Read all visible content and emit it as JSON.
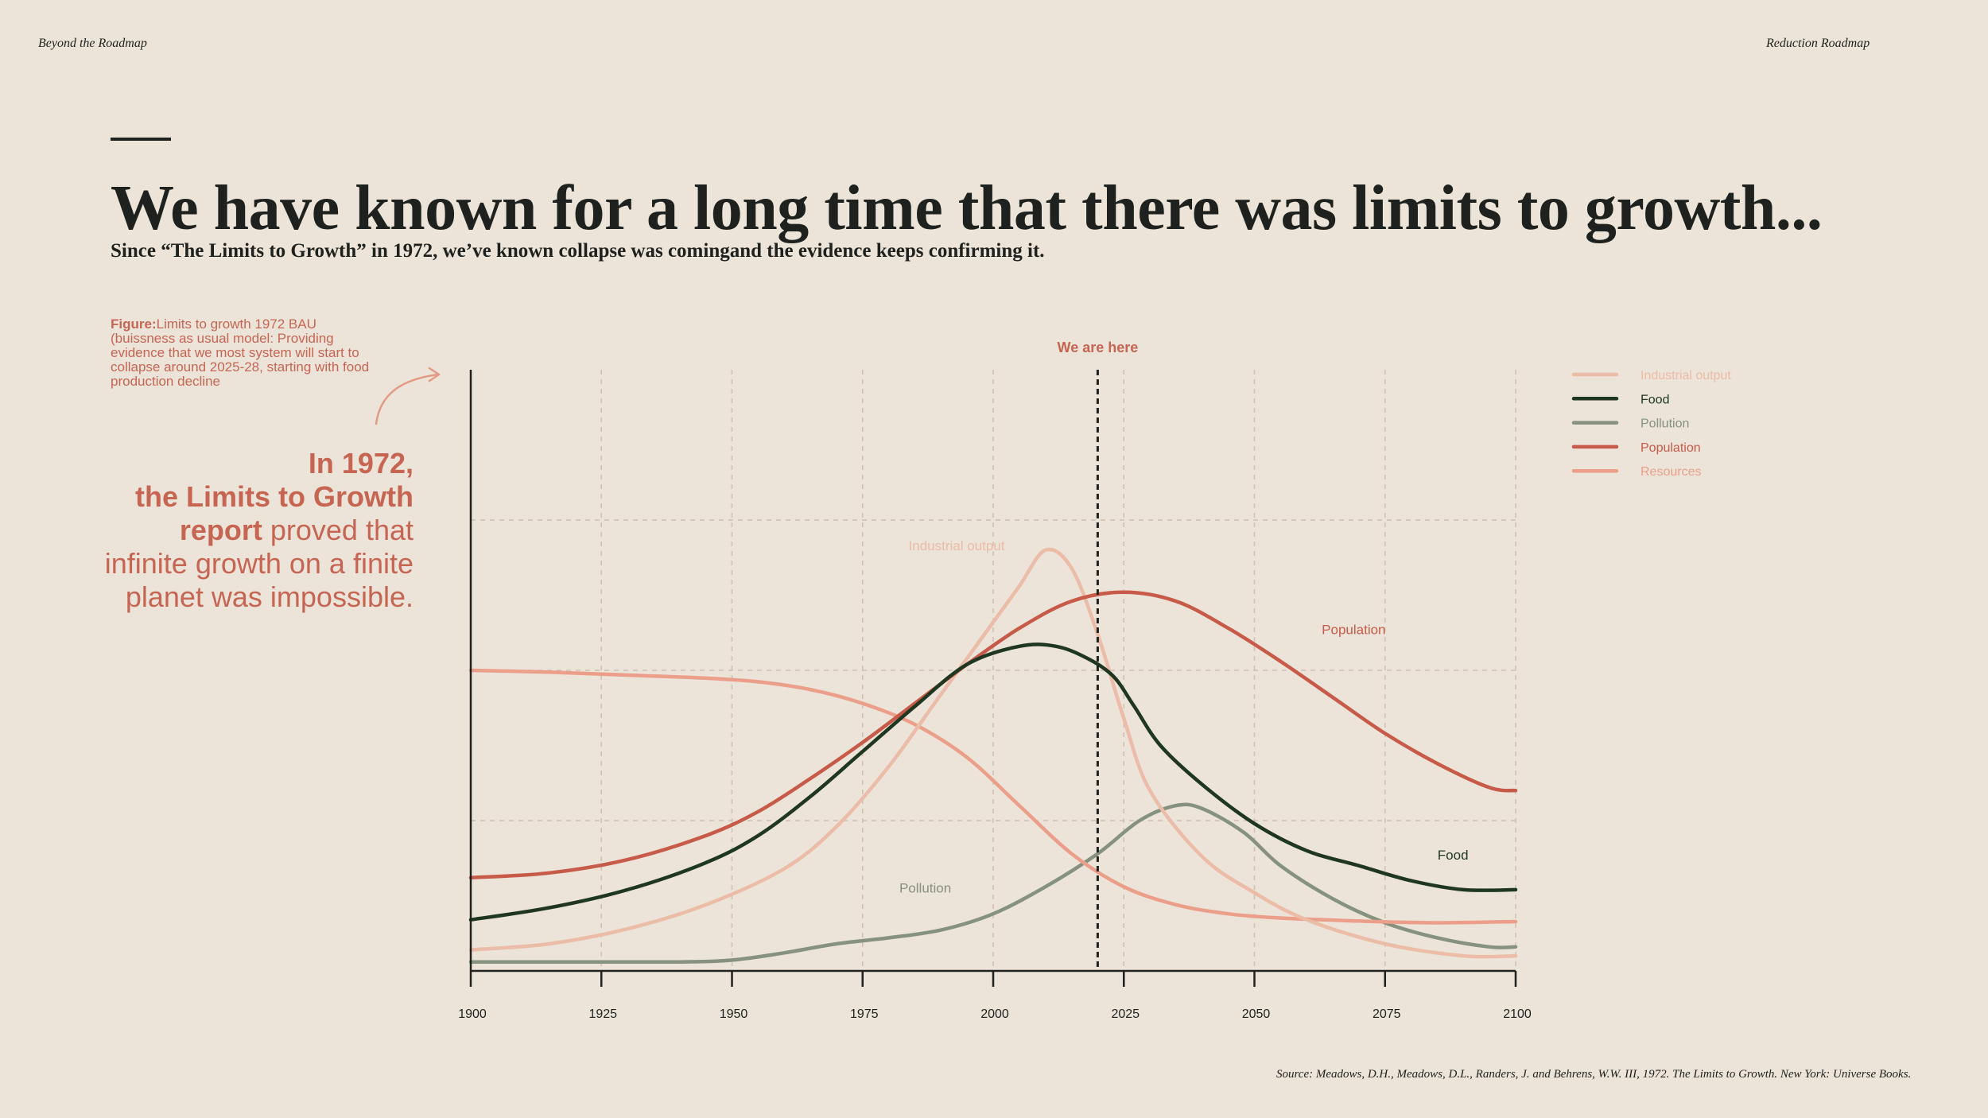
{
  "header": {
    "left": "Beyond the Roadmap",
    "right": "Reduction Roadmap"
  },
  "title": "We have known for a long time that there was limits to growth...",
  "subtitle": "Since “The Limits to Growth” in 1972, we’ve known collapse was comingand the evidence keeps confirming it.",
  "figure_note": {
    "label": "Figure:",
    "text": "Limits to growth 1972 BAU (buissness as usual model: Providing evidence that we most system will start to collapse around 2025-28, starting with food production decline"
  },
  "callout": {
    "line1": "In 1972,",
    "line2": "the Limits to Growth",
    "line3_strong": "report",
    "line3_rest": " proved that",
    "line4": "infinite growth on a finite",
    "line5": "planet was impossible."
  },
  "source": "Source: Meadows, D.H., Meadows, D.L., Randers, J. and Behrens, W.W. III, 1972. The Limits to Growth. New York: Universe Books.",
  "icons": {
    "arrow": "curved-arrow-icon"
  },
  "colors": {
    "background": "#ece3d9",
    "ink": "#1e211d",
    "accent": "#c76553",
    "industrial": "#ebbca7",
    "food": "#1f3620",
    "pollution": "#879180",
    "population": "#c75a48",
    "resources": "#eb9f8a",
    "grid": "#cfc0b4"
  },
  "chart_data": {
    "type": "line",
    "x_ticks": [
      1900,
      1925,
      1950,
      1975,
      2000,
      2025,
      2050,
      2075,
      2100
    ],
    "xlim": [
      1900,
      2100
    ],
    "ylim": [
      0,
      100
    ],
    "y_grid": [
      25,
      50,
      75
    ],
    "grid": true,
    "legend_position": "top-right",
    "marker": {
      "x": 2020,
      "label": "We are here"
    },
    "series": [
      {
        "name": "Industrial output",
        "color": "#ebbca7",
        "label_at": {
          "x": 1993,
          "y": 70,
          "text": "Industrial output"
        },
        "points": [
          [
            1900,
            3.5
          ],
          [
            1915,
            4.5
          ],
          [
            1930,
            7
          ],
          [
            1945,
            11
          ],
          [
            1960,
            17
          ],
          [
            1970,
            24
          ],
          [
            1980,
            34
          ],
          [
            1990,
            46
          ],
          [
            2000,
            58
          ],
          [
            2005,
            64
          ],
          [
            2010,
            70
          ],
          [
            2015,
            67
          ],
          [
            2020,
            56
          ],
          [
            2025,
            42
          ],
          [
            2030,
            30
          ],
          [
            2040,
            19
          ],
          [
            2050,
            13
          ],
          [
            2060,
            8.5
          ],
          [
            2075,
            4.5
          ],
          [
            2090,
            2.5
          ],
          [
            2100,
            2.5
          ]
        ]
      },
      {
        "name": "Food",
        "color": "#1f3620",
        "label_at": {
          "x": 2088,
          "y": 18.5,
          "text": "Food"
        },
        "points": [
          [
            1900,
            8.5
          ],
          [
            1915,
            10.5
          ],
          [
            1930,
            13.5
          ],
          [
            1945,
            18
          ],
          [
            1955,
            22.5
          ],
          [
            1965,
            29
          ],
          [
            1975,
            36.5
          ],
          [
            1985,
            44
          ],
          [
            1995,
            51
          ],
          [
            2005,
            54
          ],
          [
            2012,
            54
          ],
          [
            2018,
            52
          ],
          [
            2023,
            49
          ],
          [
            2027,
            44
          ],
          [
            2032,
            37.5
          ],
          [
            2040,
            31
          ],
          [
            2050,
            24.5
          ],
          [
            2060,
            20
          ],
          [
            2070,
            17.5
          ],
          [
            2080,
            15
          ],
          [
            2090,
            13.5
          ],
          [
            2100,
            13.5
          ]
        ]
      },
      {
        "name": "Pollution",
        "color": "#879180",
        "label_at": {
          "x": 1987,
          "y": 13,
          "text": "Pollution"
        },
        "points": [
          [
            1900,
            1.5
          ],
          [
            1920,
            1.5
          ],
          [
            1940,
            1.5
          ],
          [
            1950,
            1.8
          ],
          [
            1960,
            3
          ],
          [
            1970,
            4.5
          ],
          [
            1980,
            5.5
          ],
          [
            1990,
            6.8
          ],
          [
            2000,
            9.5
          ],
          [
            2010,
            14
          ],
          [
            2020,
            19.5
          ],
          [
            2028,
            25
          ],
          [
            2035,
            27.5
          ],
          [
            2040,
            27
          ],
          [
            2048,
            23
          ],
          [
            2055,
            17.5
          ],
          [
            2065,
            12
          ],
          [
            2075,
            8
          ],
          [
            2085,
            5.5
          ],
          [
            2095,
            4
          ],
          [
            2100,
            4
          ]
        ]
      },
      {
        "name": "Population",
        "color": "#c75a48",
        "label_at": {
          "x": 2069,
          "y": 56,
          "text": "Population"
        },
        "points": [
          [
            1900,
            15.5
          ],
          [
            1915,
            16.3
          ],
          [
            1930,
            18.5
          ],
          [
            1945,
            22.5
          ],
          [
            1955,
            26.5
          ],
          [
            1965,
            32
          ],
          [
            1975,
            38
          ],
          [
            1985,
            44.5
          ],
          [
            1995,
            51
          ],
          [
            2005,
            57
          ],
          [
            2015,
            61.5
          ],
          [
            2025,
            63
          ],
          [
            2035,
            61.5
          ],
          [
            2045,
            57
          ],
          [
            2055,
            51.5
          ],
          [
            2065,
            45.5
          ],
          [
            2075,
            39.5
          ],
          [
            2085,
            34.5
          ],
          [
            2095,
            30.5
          ],
          [
            2100,
            30
          ]
        ]
      },
      {
        "name": "Resources",
        "color": "#eb9f8a",
        "points": [
          [
            1900,
            50
          ],
          [
            1915,
            49.7
          ],
          [
            1930,
            49.2
          ],
          [
            1945,
            48.7
          ],
          [
            1955,
            48.1
          ],
          [
            1965,
            46.8
          ],
          [
            1975,
            44.5
          ],
          [
            1985,
            41
          ],
          [
            1995,
            35.5
          ],
          [
            2005,
            27.5
          ],
          [
            2015,
            19.5
          ],
          [
            2025,
            14
          ],
          [
            2035,
            11
          ],
          [
            2045,
            9.5
          ],
          [
            2055,
            8.8
          ],
          [
            2070,
            8.3
          ],
          [
            2085,
            8
          ],
          [
            2100,
            8.2
          ]
        ]
      }
    ]
  }
}
